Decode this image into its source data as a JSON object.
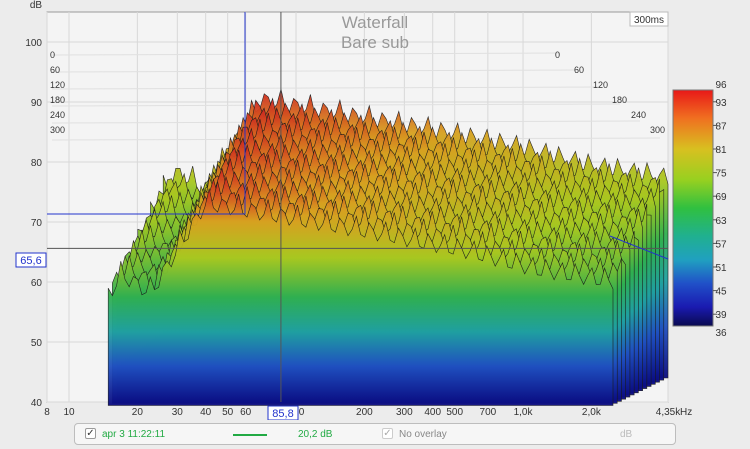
{
  "chart_data": {
    "type": "area",
    "title": "Waterfall",
    "subtitle": "Bare sub",
    "time_label": "300ms",
    "y_unit": "dB",
    "x_unit": "Hz",
    "y_ticks": [
      "100",
      "90",
      "80",
      "70",
      "60",
      "50",
      "40"
    ],
    "x_ticks": [
      "8",
      "10",
      "20",
      "30",
      "40",
      "50",
      "60",
      "100",
      "200",
      "300",
      "400",
      "500",
      "700",
      "1,0k",
      "2,0k",
      "4,35k"
    ],
    "time_ticks": [
      "0",
      "60",
      "120",
      "180",
      "240",
      "300"
    ],
    "cursor": {
      "x_readout": "85,8",
      "y_readout": "65,6"
    },
    "colorscale": {
      "max": "96",
      "min": "36",
      "ticks": [
        "93",
        "87",
        "81",
        "75",
        "69",
        "63",
        "57",
        "51",
        "45",
        "39"
      ],
      "colors": [
        "#e8202a",
        "#f08020",
        "#d8c020",
        "#a8d020",
        "#40c030",
        "#20b070",
        "#20a0b0",
        "#2060c0",
        "#2020b0",
        "#0a0a70"
      ]
    },
    "spectrum_peaks": [
      {
        "x": 20,
        "peak": 72,
        "t0": 63
      },
      {
        "x": 30,
        "peak": 81,
        "t0": 65
      },
      {
        "x": 40,
        "peak": 78,
        "t0": 62
      },
      {
        "x": 70,
        "peak": 93,
        "t0": 70
      },
      {
        "x": 100,
        "peak": 92,
        "t0": 72
      },
      {
        "x": 200,
        "peak": 90,
        "t0": 70
      },
      {
        "x": 400,
        "peak": 88,
        "t0": 68
      },
      {
        "x": 1000,
        "peak": 85,
        "t0": 65
      },
      {
        "x": 2000,
        "peak": 82,
        "t0": 60
      },
      {
        "x": 4350,
        "peak": 80,
        "t0": 55
      }
    ]
  },
  "legend": {
    "measurement_name": "apr 3 11:22:11",
    "smoothing": "20,2 dB",
    "overlay_label": "No overlay",
    "unit_label": "dB",
    "trace_color": "#22aa44"
  }
}
